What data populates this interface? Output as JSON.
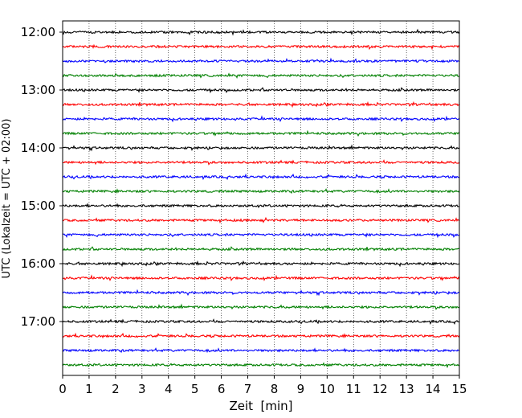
{
  "chart_data": {
    "type": "line",
    "title": "",
    "xlabel": "Zeit  [min]",
    "ylabel": "UTC (Lokalzeit = UTC + 02:00)",
    "xlim": [
      0,
      15
    ],
    "x_ticks": [
      "0",
      "1",
      "2",
      "3",
      "4",
      "5",
      "6",
      "7",
      "8",
      "9",
      "10",
      "11",
      "12",
      "13",
      "14",
      "15"
    ],
    "y_ticks": [
      "12:00",
      "13:00",
      "14:00",
      "15:00",
      "16:00",
      "17:00"
    ],
    "grid": "vertical dotted at each minute",
    "trace_interval_min": 15,
    "start_time": "12:00",
    "trace_count": 24,
    "color_cycle": [
      "#000000",
      "#ff0000",
      "#0000ff",
      "#008000"
    ],
    "traces": [
      {
        "row": 0,
        "start": "12:00",
        "color": "#000000"
      },
      {
        "row": 1,
        "start": "12:15",
        "color": "#ff0000"
      },
      {
        "row": 2,
        "start": "12:30",
        "color": "#0000ff"
      },
      {
        "row": 3,
        "start": "12:45",
        "color": "#008000"
      },
      {
        "row": 4,
        "start": "13:00",
        "color": "#000000"
      },
      {
        "row": 5,
        "start": "13:15",
        "color": "#ff0000"
      },
      {
        "row": 6,
        "start": "13:30",
        "color": "#0000ff"
      },
      {
        "row": 7,
        "start": "13:45",
        "color": "#008000"
      },
      {
        "row": 8,
        "start": "14:00",
        "color": "#000000"
      },
      {
        "row": 9,
        "start": "14:15",
        "color": "#ff0000"
      },
      {
        "row": 10,
        "start": "14:30",
        "color": "#0000ff"
      },
      {
        "row": 11,
        "start": "14:45",
        "color": "#008000"
      },
      {
        "row": 12,
        "start": "15:00",
        "color": "#000000"
      },
      {
        "row": 13,
        "start": "15:15",
        "color": "#ff0000"
      },
      {
        "row": 14,
        "start": "15:30",
        "color": "#0000ff"
      },
      {
        "row": 15,
        "start": "15:45",
        "color": "#008000"
      },
      {
        "row": 16,
        "start": "16:00",
        "color": "#000000"
      },
      {
        "row": 17,
        "start": "16:15",
        "color": "#ff0000"
      },
      {
        "row": 18,
        "start": "16:30",
        "color": "#0000ff"
      },
      {
        "row": 19,
        "start": "16:45",
        "color": "#008000"
      },
      {
        "row": 20,
        "start": "17:00",
        "color": "#000000"
      },
      {
        "row": 21,
        "start": "17:15",
        "color": "#ff0000"
      },
      {
        "row": 22,
        "start": "17:30",
        "color": "#0000ff"
      },
      {
        "row": 23,
        "start": "17:45",
        "color": "#008000"
      }
    ]
  }
}
